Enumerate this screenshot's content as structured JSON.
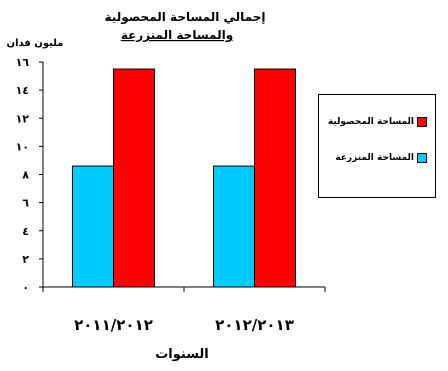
{
  "chart_data": {
    "type": "bar",
    "title_line1": "إجمالي المساحة المحصولية",
    "title_line2": "والمساحة المنزرعة",
    "ylabel": "مليون فدان",
    "xlabel": "السنوات",
    "categories": [
      "٢٠١١/٢٠١٢",
      "٢٠١٢/٢٠١٣"
    ],
    "series": [
      {
        "name": "المساحة المنزرعة",
        "color": "#00ccff",
        "values": [
          8.6,
          8.6
        ]
      },
      {
        "name": "المساحة المحصولية",
        "color": "#ff0000",
        "values": [
          15.5,
          15.5
        ]
      }
    ],
    "ylim": [
      0,
      16
    ],
    "yticks": [
      "٠",
      "٢",
      "٤",
      "٦",
      "٨",
      "١٠",
      "١٢",
      "١٤",
      "١٦"
    ],
    "grid": false,
    "legend_position": "right"
  }
}
